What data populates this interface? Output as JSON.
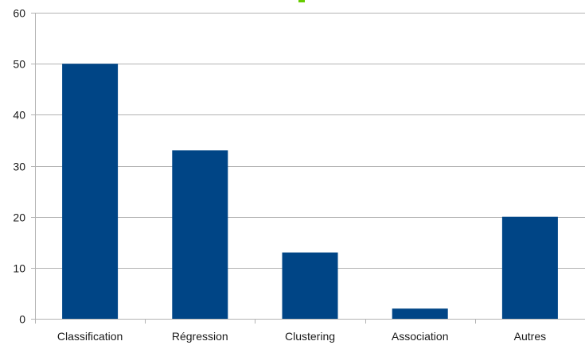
{
  "chart_data": {
    "type": "bar",
    "categories": [
      "Classification",
      "Régression",
      "Clustering",
      "Association",
      "Autres"
    ],
    "values": [
      50,
      33,
      13,
      2,
      20
    ],
    "ylim": [
      0,
      60
    ],
    "yticks": [
      0,
      10,
      20,
      30,
      40,
      50,
      60
    ],
    "grid": true,
    "legend": "none",
    "bar_color": "#004586",
    "title_color": "#66cc00"
  }
}
